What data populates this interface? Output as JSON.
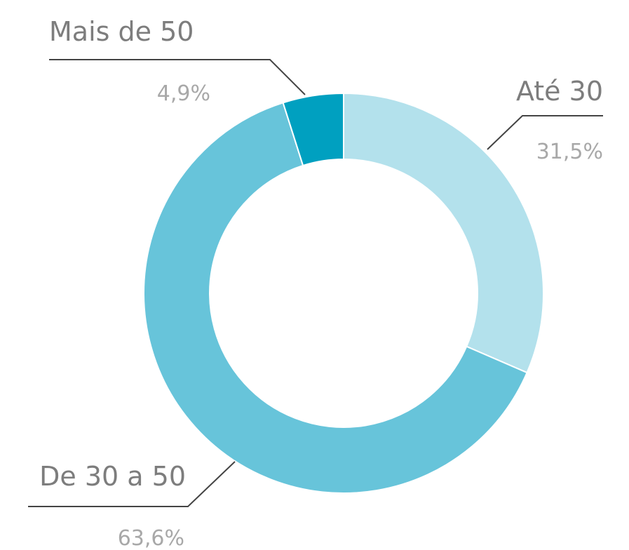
{
  "chart_data": {
    "type": "donut",
    "categories": [
      "Até 30",
      "De 30 a 50",
      "Mais de 50"
    ],
    "values": [
      31.5,
      63.6,
      4.9
    ],
    "value_labels": [
      "31,5%",
      "63,6%",
      "4,9%"
    ],
    "colors": [
      "#b3e1ec",
      "#67c4da",
      "#00a0c0"
    ]
  }
}
